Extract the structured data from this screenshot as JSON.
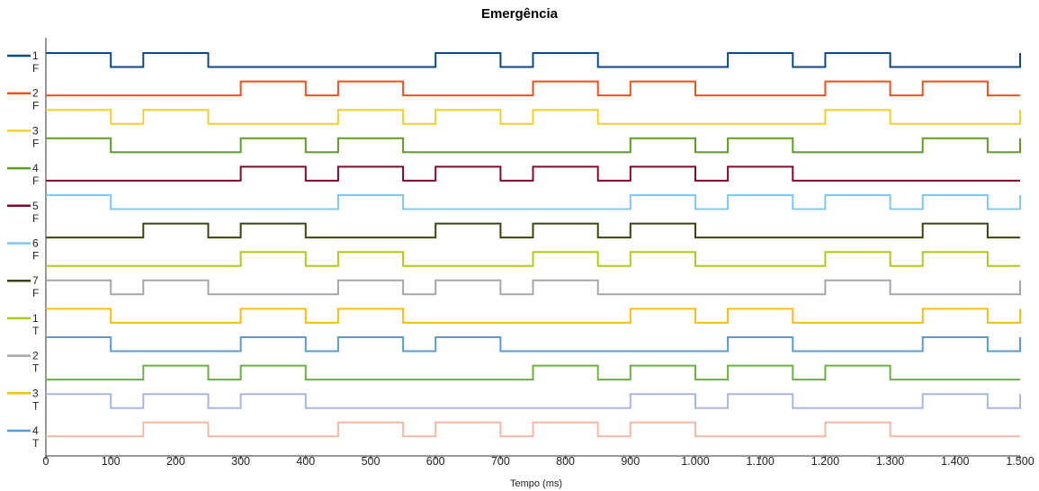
{
  "chart_data": {
    "type": "line",
    "title": "Emergência",
    "xlabel": "Tempo (ms)",
    "ylabel": "",
    "xlim": [
      0,
      1500
    ],
    "x_ticks": [
      0,
      100,
      200,
      300,
      400,
      500,
      600,
      700,
      800,
      900,
      1000,
      1100,
      1200,
      1300,
      1400,
      1500
    ],
    "x_tick_labels": [
      "0",
      "100",
      "200",
      "300",
      "400",
      "500",
      "600",
      "700",
      "800",
      "900",
      "1.000",
      "1.100",
      "1.200",
      "1.300",
      "1.400",
      "1.500"
    ],
    "grid": false,
    "legend_position": "left",
    "series": [
      {
        "name": "1 F",
        "color": "#0b4a86",
        "initial": 1,
        "transitions": [
          100,
          150,
          250,
          600,
          700,
          750,
          850,
          1050,
          1150,
          1200,
          1300,
          1500
        ]
      },
      {
        "name": "2 F",
        "color": "#f0501e",
        "initial": 0,
        "transitions": [
          300,
          400,
          450,
          550,
          750,
          850,
          900,
          1000,
          1200,
          1300,
          1350,
          1450
        ]
      },
      {
        "name": "3 F",
        "color": "#f2d02c",
        "initial": 1,
        "transitions": [
          100,
          150,
          250,
          450,
          550,
          600,
          700,
          750,
          850,
          1200,
          1300,
          1500
        ]
      },
      {
        "name": "4 F",
        "color": "#5f9d26",
        "initial": 1,
        "transitions": [
          100,
          300,
          400,
          450,
          550,
          900,
          1000,
          1050,
          1150,
          1350,
          1450,
          1500
        ]
      },
      {
        "name": "5 F",
        "color": "#7b0d2a",
        "initial": 0,
        "transitions": [
          300,
          400,
          450,
          550,
          600,
          700,
          750,
          850,
          900,
          1000,
          1050,
          1150
        ]
      },
      {
        "name": "6 F",
        "color": "#7ec8f2",
        "initial": 1,
        "transitions": [
          100,
          450,
          550,
          900,
          1000,
          1050,
          1150,
          1200,
          1300,
          1350,
          1450,
          1500
        ]
      },
      {
        "name": "7 F",
        "color": "#3b440d",
        "initial": 0,
        "transitions": [
          150,
          250,
          300,
          400,
          600,
          700,
          750,
          850,
          900,
          1000,
          1350,
          1450
        ]
      },
      {
        "name": "1 T",
        "color": "#a9cc1c",
        "initial": 0,
        "transitions": [
          300,
          400,
          450,
          550,
          750,
          850,
          900,
          1000,
          1200,
          1300,
          1350,
          1450
        ]
      },
      {
        "name": "2 T",
        "color": "#a6a6a6",
        "initial": 1,
        "transitions": [
          100,
          150,
          250,
          450,
          550,
          600,
          700,
          750,
          850,
          1200,
          1300,
          1500
        ]
      },
      {
        "name": "3 T",
        "color": "#f9bd10",
        "initial": 1,
        "transitions": [
          100,
          300,
          400,
          450,
          550,
          900,
          1000,
          1050,
          1150,
          1350,
          1450,
          1500
        ]
      },
      {
        "name": "4 T",
        "color": "#5b9bd5",
        "initial": 1,
        "transitions": [
          100,
          300,
          400,
          450,
          550,
          600,
          700,
          1050,
          1150,
          1350,
          1450,
          1500
        ]
      },
      {
        "name": "",
        "color": "#70ad47",
        "initial": 0,
        "transitions": [
          150,
          250,
          300,
          400,
          750,
          850,
          900,
          1000,
          1050,
          1150,
          1200,
          1300
        ]
      },
      {
        "name": "",
        "color": "#a9b7e0",
        "initial": 1,
        "transitions": [
          100,
          150,
          250,
          300,
          400,
          900,
          1000,
          1050,
          1150,
          1350,
          1450,
          1500
        ]
      },
      {
        "name": "",
        "color": "#f4b9a3",
        "initial": 0,
        "transitions": [
          150,
          250,
          450,
          550,
          600,
          700,
          750,
          850,
          900,
          1000,
          1200,
          1300
        ]
      }
    ],
    "legend": [
      {
        "line1": "1",
        "line2": "F",
        "color": "#0b4a86"
      },
      {
        "line1": "2",
        "line2": "F",
        "color": "#f0501e"
      },
      {
        "line1": "3",
        "line2": "F",
        "color": "#f2d02c"
      },
      {
        "line1": "4",
        "line2": "F",
        "color": "#5f9d26"
      },
      {
        "line1": "5",
        "line2": "F",
        "color": "#7b0d2a"
      },
      {
        "line1": "6",
        "line2": "F",
        "color": "#7ec8f2"
      },
      {
        "line1": "7",
        "line2": "F",
        "color": "#3b440d"
      },
      {
        "line1": "1",
        "line2": "T",
        "color": "#a9cc1c"
      },
      {
        "line1": "2",
        "line2": "T",
        "color": "#a6a6a6"
      },
      {
        "line1": "3",
        "line2": "T",
        "color": "#f9bd10"
      },
      {
        "line1": "4",
        "line2": "T",
        "color": "#5b9bd5"
      }
    ]
  }
}
